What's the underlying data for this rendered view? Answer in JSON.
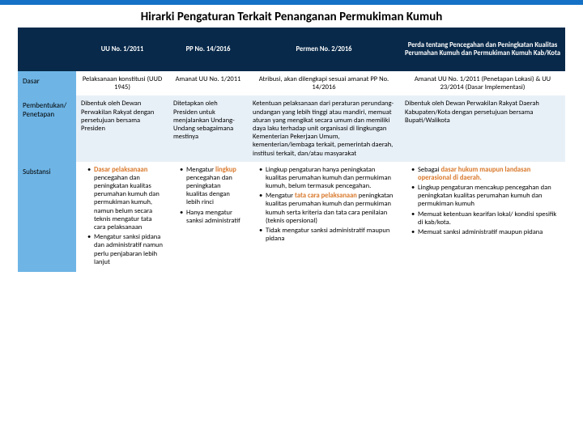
{
  "title": "Hirarki Pengaturan Terkait Penanganan Permukiman Kumuh",
  "colors": {
    "topbar": "#1571c6",
    "header_bg": "#08294a",
    "header_fg": "#ffffff",
    "rowlabel_bg": "#6eb5e6",
    "alt_bg": "#e8f0f7",
    "accent_text": "#d97a2e"
  },
  "columns": {
    "c0": "",
    "c1": "UU No. 1/2011",
    "c2": "PP No. 14/2016",
    "c3": "Permen No. 2/2016",
    "c4": "Perda tentang Pencegahan dan Peningkatan Kualitas Perumahan Kumuh dan Permukiman Kumuh Kab/Kota"
  },
  "rows": {
    "r1": {
      "label": "Dasar",
      "c1": "Pelaksanaan konstitusi (UUD 1945)",
      "c2": "Amanat UU No. 1/2011",
      "c3": "Atribusi, akan dilengkapi sesuai amanat PP No. 14/2016",
      "c4": "Amanat UU No. 1/2011 (Penetapan Lokasi) & UU 23/2014 (Dasar Implementasi)"
    },
    "r2": {
      "label": "Pembentukan/ Penetapan",
      "c1": "Dibentuk oleh Dewan Perwakilan Rakyat dengan persetujuan bersama Presiden",
      "c2": "Ditetapkan oleh Presiden untuk menjalankan Undang-Undang sebagaimana mestinya",
      "c3": "Ketentuan pelaksanaan dari peraturan perundang-undangan yang lebih tinggi atau mandiri, memuat aturan yang mengikat secara umum dan memiliki daya laku terhadap unit organisasi di lingkungan Kementerian Pekerjaan Umum, kementerian/lembaga terkait, pemerintah daerah, institusi terkait, dan/atau masyarakat",
      "c4": "Dibentuk oleh Dewan Perwakilan Rakyat Daerah Kabupaten/Kota dengan persetujuan bersama Bupati/Walikota"
    },
    "r3": {
      "label": "Substansi",
      "c1": {
        "b1a": "Dasar pelaksanaan",
        "b1b": " pencegahan dan peningkatan kualitas perumahan kumuh dan permukiman kumuh, namun belum secara teknis mengatur tata cara pelaksanaan",
        "b2": "Mengatur sanksi pidana dan administratif namun perlu penjabaran lebih lanjut"
      },
      "c2": {
        "b1a": "Mengatur ",
        "b1b": "lingkup",
        "b1c": " pencegahan dan peningkatan kualitas dengan lebih rinci",
        "b2": "Hanya mengatur sanksi administratif"
      },
      "c3": {
        "b1": "Lingkup pengaturan hanya peningkatan kualitas perumahan kumuh dan permukiman kumuh, belum termasuk pencegahan.",
        "b2a": "Mengatur ",
        "b2b": "tata cara pelaksanaan",
        "b2c": " peningkatan kualitas perumahan kumuh dan permukiman kumuh serta kriteria dan tata cara penilaian (teknis opersional)",
        "b3": "Tidak mengatur sanksi administratif maupun pidana"
      },
      "c4": {
        "b1a": "Sebagai ",
        "b1b": "dasar hukum maupun landasan operasional di daerah.",
        "b2": "Lingkup pengaturan mencakup pencegahan dan peningkatan kualitas perumahan kumuh dan permukiman kumuh",
        "b3": "Memuat ketentuan kearifan lokal/ kondisi spesifik di kab/kota.",
        "b4": "Memuat sanksi administratif maupun pidana"
      }
    }
  }
}
